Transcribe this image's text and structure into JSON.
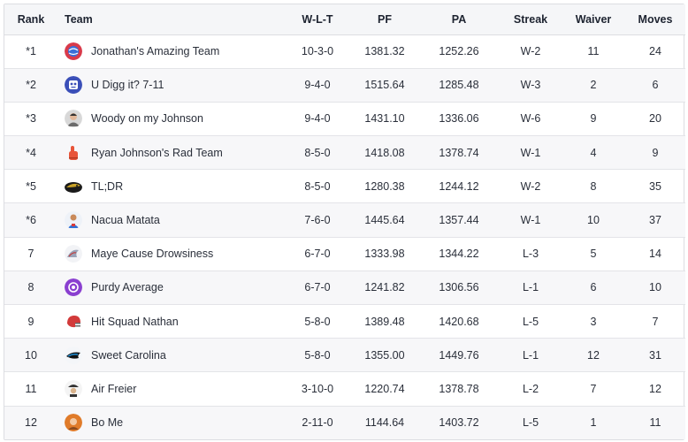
{
  "standings": {
    "columns": {
      "rank": "Rank",
      "team": "Team",
      "wlt": "W-L-T",
      "pf": "PF",
      "pa": "PA",
      "streak": "Streak",
      "waiver": "Waiver",
      "moves": "Moves"
    },
    "rows": [
      {
        "rank": "*1",
        "team": "Jonathan's Amazing Team",
        "wlt": "10-3-0",
        "pf": "1381.32",
        "pa": "1252.26",
        "streak": "W-2",
        "waiver": "11",
        "moves": "24",
        "logo": "globe-avatar-icon",
        "color": "#d93a4a"
      },
      {
        "rank": "*2",
        "team": "U Digg it? 7-11",
        "wlt": "9-4-0",
        "pf": "1515.64",
        "pa": "1285.48",
        "streak": "W-3",
        "waiver": "2",
        "moves": "6",
        "logo": "robot-avatar-icon",
        "color": "#3b4fb8"
      },
      {
        "rank": "*3",
        "team": "Woody on my Johnson",
        "wlt": "9-4-0",
        "pf": "1431.10",
        "pa": "1336.06",
        "streak": "W-6",
        "waiver": "9",
        "moves": "20",
        "logo": "person-photo-icon",
        "color": "#6b6b6b"
      },
      {
        "rank": "*4",
        "team": "Ryan Johnson's Rad Team",
        "wlt": "8-5-0",
        "pf": "1418.08",
        "pa": "1378.74",
        "streak": "W-1",
        "waiver": "4",
        "moves": "9",
        "logo": "foam-finger-icon",
        "color": "#e8553a"
      },
      {
        "rank": "*5",
        "team": "TL;DR",
        "wlt": "8-5-0",
        "pf": "1280.38",
        "pa": "1244.12",
        "streak": "W-2",
        "waiver": "8",
        "moves": "35",
        "logo": "jaguar-icon",
        "color": "#c9a227"
      },
      {
        "rank": "*6",
        "team": "Nacua Matata",
        "wlt": "7-6-0",
        "pf": "1445.64",
        "pa": "1357.44",
        "streak": "W-1",
        "waiver": "10",
        "moves": "37",
        "logo": "player-avatar-icon",
        "color": "#2f6fd6"
      },
      {
        "rank": "7",
        "team": "Maye Cause Drowsiness",
        "wlt": "6-7-0",
        "pf": "1333.98",
        "pa": "1344.22",
        "streak": "L-3",
        "waiver": "5",
        "moves": "14",
        "logo": "patriot-icon",
        "color": "#9aa3b8"
      },
      {
        "rank": "8",
        "team": "Purdy Average",
        "wlt": "6-7-0",
        "pf": "1241.82",
        "pa": "1306.56",
        "streak": "L-1",
        "waiver": "6",
        "moves": "10",
        "logo": "purple-avatar-icon",
        "color": "#8a3fd0"
      },
      {
        "rank": "9",
        "team": "Hit Squad Nathan",
        "wlt": "5-8-0",
        "pf": "1389.48",
        "pa": "1420.68",
        "streak": "L-5",
        "waiver": "3",
        "moves": "7",
        "logo": "football-helmet-icon",
        "color": "#d23a3a"
      },
      {
        "rank": "10",
        "team": "Sweet Carolina",
        "wlt": "5-8-0",
        "pf": "1355.00",
        "pa": "1449.76",
        "streak": "L-1",
        "waiver": "12",
        "moves": "31",
        "logo": "panther-icon",
        "color": "#1f8fd6"
      },
      {
        "rank": "11",
        "team": "Air Freier",
        "wlt": "3-10-0",
        "pf": "1220.74",
        "pa": "1378.78",
        "streak": "L-2",
        "waiver": "7",
        "moves": "12",
        "logo": "pirate-icon",
        "color": "#333333"
      },
      {
        "rank": "12",
        "team": "Bo Me",
        "wlt": "2-11-0",
        "pf": "1144.64",
        "pa": "1403.72",
        "streak": "L-5",
        "waiver": "1",
        "moves": "11",
        "logo": "orange-avatar-icon",
        "color": "#e07b2a"
      }
    ]
  }
}
